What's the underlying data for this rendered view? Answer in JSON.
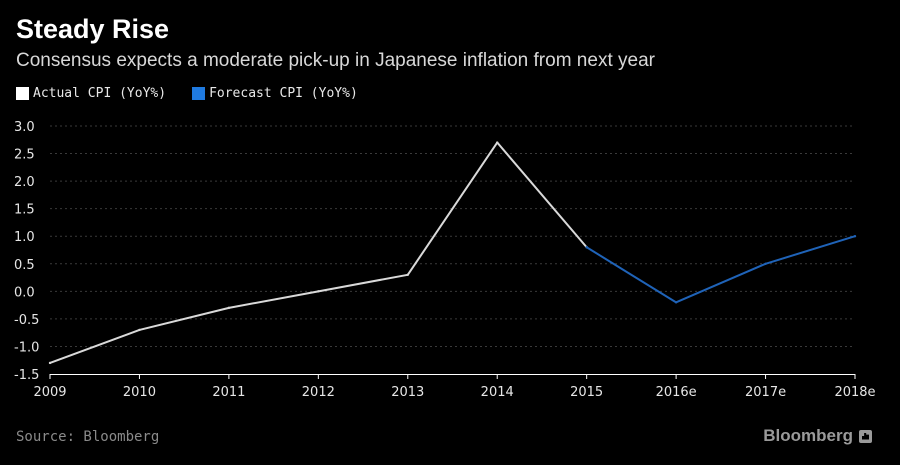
{
  "header": {
    "title": "Steady Rise",
    "subtitle": "Consensus expects a moderate pick-up in Japanese inflation from next year"
  },
  "legend": [
    {
      "label": "Actual CPI (YoY%)",
      "color": "#ffffff"
    },
    {
      "label": "Forecast CPI (YoY%)",
      "color": "#1f7ae0"
    }
  ],
  "footer": {
    "source": "Source: Bloomberg",
    "brand": "Bloomberg"
  },
  "colors": {
    "background": "#000000",
    "actual_line": "#d9d9d9",
    "forecast_line": "#1f63b8",
    "grid": "#3a3a3a"
  },
  "chart_data": {
    "type": "line",
    "title": "Steady Rise",
    "subtitle": "Consensus expects a moderate pick-up in Japanese inflation from next year",
    "categories": [
      "2009",
      "2010",
      "2011",
      "2012",
      "2013",
      "2014",
      "2015",
      "2016e",
      "2017e",
      "2018e"
    ],
    "series": [
      {
        "name": "Actual CPI (YoY%)",
        "values": [
          -1.3,
          -0.7,
          -0.3,
          0.0,
          0.3,
          2.7,
          0.8,
          null,
          null,
          null
        ]
      },
      {
        "name": "Forecast CPI (YoY%)",
        "values": [
          null,
          null,
          null,
          null,
          null,
          null,
          0.8,
          -0.2,
          0.5,
          1.0
        ]
      }
    ],
    "yticks": [
      "3.0",
      "2.5",
      "2.0",
      "1.5",
      "1.0",
      "0.5",
      "0.0",
      "-0.5",
      "-1.0",
      "-1.5"
    ],
    "ylim": [
      -1.5,
      3.0
    ],
    "xlabel": "",
    "ylabel": "",
    "grid": true,
    "legend_position": "top-left"
  }
}
